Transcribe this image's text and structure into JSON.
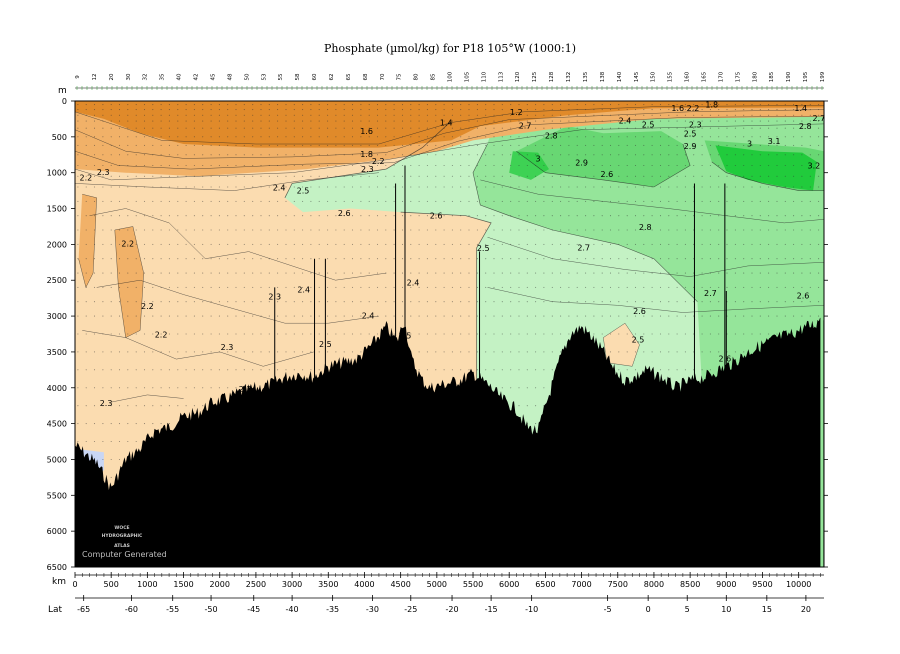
{
  "chart_data": {
    "type": "heatmap",
    "title": "Phosphate (µmol/kg) for P18 105°W (1000:1)",
    "ylabel": "m",
    "xlabel": "km",
    "lat_label": "Lat",
    "ylim": [
      0,
      6500
    ],
    "xlim": [
      0,
      10350
    ],
    "y_ticks": [
      0,
      500,
      1000,
      1500,
      2000,
      2500,
      3000,
      3500,
      4000,
      4500,
      5000,
      5500,
      6000,
      6500
    ],
    "x_ticks": [
      0,
      500,
      1000,
      1500,
      2000,
      2500,
      3000,
      3500,
      4000,
      4500,
      5000,
      5500,
      6000,
      6500,
      7000,
      7500,
      8000,
      8500,
      9000,
      9500,
      10000
    ],
    "lat_ticks": [
      {
        "label": "-65",
        "km": 120
      },
      {
        "label": "-60",
        "km": 780
      },
      {
        "label": "-55",
        "km": 1350
      },
      {
        "label": "-50",
        "km": 1880
      },
      {
        "label": "-45",
        "km": 2470
      },
      {
        "label": "-40",
        "km": 3000
      },
      {
        "label": "-35",
        "km": 3560
      },
      {
        "label": "-30",
        "km": 4110
      },
      {
        "label": "-25",
        "km": 4640
      },
      {
        "label": "-20",
        "km": 5210
      },
      {
        "label": "-15",
        "km": 5750
      },
      {
        "label": "-10",
        "km": 6310
      },
      {
        "label": "-5",
        "km": 7360
      },
      {
        "label": "0",
        "km": 7920
      },
      {
        "label": "5",
        "km": 8460
      },
      {
        "label": "10",
        "km": 9000
      },
      {
        "label": "15",
        "km": 9560
      },
      {
        "label": "20",
        "km": 10100
      }
    ],
    "stations": [
      "9",
      "12",
      "20",
      "30",
      "32",
      "35",
      "40",
      "42",
      "45",
      "48",
      "50",
      "53",
      "55",
      "58",
      "60",
      "62",
      "65",
      "68",
      "70",
      "75",
      "80",
      "85",
      "100",
      "105",
      "110",
      "113",
      "120",
      "125",
      "128",
      "132",
      "135",
      "138",
      "140",
      "145",
      "150",
      "155",
      "160",
      "165",
      "170",
      "175",
      "180",
      "185",
      "190",
      "195",
      "199"
    ],
    "contour_labels": [
      {
        "text": "1.2",
        "km": 6100,
        "depth": 150
      },
      {
        "text": "1.4",
        "km": 5130,
        "depth": 300
      },
      {
        "text": "1.6",
        "km": 4030,
        "depth": 420
      },
      {
        "text": "1.8",
        "km": 4030,
        "depth": 740
      },
      {
        "text": "2.2",
        "km": 4190,
        "depth": 840
      },
      {
        "text": "2.3",
        "km": 4040,
        "depth": 950
      },
      {
        "text": "2.3",
        "km": 390,
        "depth": 990
      },
      {
        "text": "2.2",
        "km": 150,
        "depth": 1070
      },
      {
        "text": "2.4",
        "km": 2820,
        "depth": 1210
      },
      {
        "text": "2.5",
        "km": 3150,
        "depth": 1250
      },
      {
        "text": "2.6",
        "km": 3720,
        "depth": 1560
      },
      {
        "text": "2.6",
        "km": 4990,
        "depth": 1600
      },
      {
        "text": "2.2",
        "km": 730,
        "depth": 1990
      },
      {
        "text": "2.5",
        "km": 5640,
        "depth": 2050
      },
      {
        "text": "2.4",
        "km": 4670,
        "depth": 2530
      },
      {
        "text": "2.4",
        "km": 3160,
        "depth": 2630
      },
      {
        "text": "2.3",
        "km": 2760,
        "depth": 2730
      },
      {
        "text": "2.2",
        "km": 1000,
        "depth": 2860
      },
      {
        "text": "2.4",
        "km": 4050,
        "depth": 2990
      },
      {
        "text": "2.2",
        "km": 1190,
        "depth": 3260
      },
      {
        "text": "2.5",
        "km": 4560,
        "depth": 3270
      },
      {
        "text": "2.3",
        "km": 2100,
        "depth": 3430
      },
      {
        "text": "2.5",
        "km": 3460,
        "depth": 3390
      },
      {
        "text": "2.3",
        "km": 430,
        "depth": 4210
      },
      {
        "text": "2.3",
        "km": 2350,
        "depth": 4020
      },
      {
        "text": "2.4",
        "km": 7600,
        "depth": 270
      },
      {
        "text": "2.5",
        "km": 7920,
        "depth": 330
      },
      {
        "text": "2.7",
        "km": 6220,
        "depth": 340
      },
      {
        "text": "2.8",
        "km": 6580,
        "depth": 480
      },
      {
        "text": "3",
        "km": 6400,
        "depth": 800
      },
      {
        "text": "2.9",
        "km": 7000,
        "depth": 860
      },
      {
        "text": "2.6",
        "km": 7350,
        "depth": 1020
      },
      {
        "text": "2.7",
        "km": 7030,
        "depth": 2040
      },
      {
        "text": "2.8",
        "km": 7880,
        "depth": 1760
      },
      {
        "text": "2.6",
        "km": 7800,
        "depth": 2930
      },
      {
        "text": "2.5",
        "km": 7780,
        "depth": 3330
      },
      {
        "text": "2.7",
        "km": 8780,
        "depth": 2680
      },
      {
        "text": "2.6",
        "km": 8980,
        "depth": 3590
      },
      {
        "text": "2.2",
        "km": 8540,
        "depth": 100
      },
      {
        "text": "2.3",
        "km": 8570,
        "depth": 330
      },
      {
        "text": "2.5",
        "km": 8500,
        "depth": 450
      },
      {
        "text": "2.9",
        "km": 8500,
        "depth": 630
      },
      {
        "text": "3",
        "km": 9320,
        "depth": 590
      },
      {
        "text": "3.1",
        "km": 9660,
        "depth": 560
      },
      {
        "text": "3.2",
        "km": 10210,
        "depth": 900
      },
      {
        "text": "2.8",
        "km": 10090,
        "depth": 350
      },
      {
        "text": "2.7",
        "km": 10280,
        "depth": 240
      },
      {
        "text": "1.4",
        "km": 10030,
        "depth": 100
      },
      {
        "text": "2.6",
        "km": 10060,
        "depth": 2710
      },
      {
        "text": "1.6",
        "km": 8330,
        "depth": 100
      },
      {
        "text": "1.8",
        "km": 8800,
        "depth": 50
      }
    ],
    "value_regions": [
      {
        "range": "< 2.0",
        "color": "#e08a2a"
      },
      {
        "range": "2.0–2.2",
        "color": "#f1b168"
      },
      {
        "range": "2.2–2.5",
        "color": "#fbdcb0"
      },
      {
        "range": "2.5–2.6",
        "color": "#c4f2c4"
      },
      {
        "range": "2.6–2.8",
        "color": "#95e59a"
      },
      {
        "range": "2.8–3.0",
        "color": "#68d773"
      },
      {
        "range": "> 3.0",
        "color": "#21cb3c"
      }
    ],
    "bathymetry": [
      [
        0,
        4800
      ],
      [
        300,
        5050
      ],
      [
        500,
        5400
      ],
      [
        700,
        5000
      ],
      [
        900,
        4850
      ],
      [
        1100,
        4600
      ],
      [
        1300,
        4550
      ],
      [
        1500,
        4400
      ],
      [
        1700,
        4350
      ],
      [
        1900,
        4200
      ],
      [
        2100,
        4150
      ],
      [
        2300,
        4050
      ],
      [
        2500,
        4000
      ],
      [
        2700,
        3950
      ],
      [
        2900,
        3850
      ],
      [
        3100,
        3800
      ],
      [
        3300,
        3850
      ],
      [
        3500,
        3700
      ],
      [
        3700,
        3650
      ],
      [
        3900,
        3600
      ],
      [
        4100,
        3400
      ],
      [
        4300,
        3150
      ],
      [
        4450,
        3350
      ],
      [
        4550,
        3050
      ],
      [
        4650,
        3600
      ],
      [
        4800,
        3900
      ],
      [
        4900,
        4000
      ],
      [
        5100,
        3950
      ],
      [
        5300,
        3900
      ],
      [
        5500,
        3800
      ],
      [
        5700,
        3950
      ],
      [
        5900,
        4150
      ],
      [
        6100,
        4300
      ],
      [
        6250,
        4550
      ],
      [
        6400,
        4600
      ],
      [
        6550,
        4100
      ],
      [
        6700,
        3600
      ],
      [
        6850,
        3250
      ],
      [
        7000,
        3150
      ],
      [
        7150,
        3300
      ],
      [
        7300,
        3500
      ],
      [
        7450,
        3750
      ],
      [
        7600,
        3900
      ],
      [
        7750,
        3850
      ],
      [
        7900,
        3750
      ],
      [
        8100,
        3850
      ],
      [
        8300,
        4000
      ],
      [
        8500,
        3900
      ],
      [
        8700,
        3850
      ],
      [
        8900,
        3750
      ],
      [
        9100,
        3650
      ],
      [
        9300,
        3500
      ],
      [
        9500,
        3400
      ],
      [
        9700,
        3300
      ],
      [
        9900,
        3250
      ],
      [
        10100,
        3150
      ],
      [
        10250,
        3100
      ],
      [
        10300,
        3000
      ],
      [
        10350,
        3000
      ]
    ],
    "grid": false
  },
  "watermark": {
    "atlas_lines": [
      "WOCE",
      "HYDROGRAPHIC",
      "ATLAS"
    ],
    "credit": "Computer Generated"
  },
  "colors": {
    "seafloor": "#000000",
    "background": "#ffffff"
  }
}
